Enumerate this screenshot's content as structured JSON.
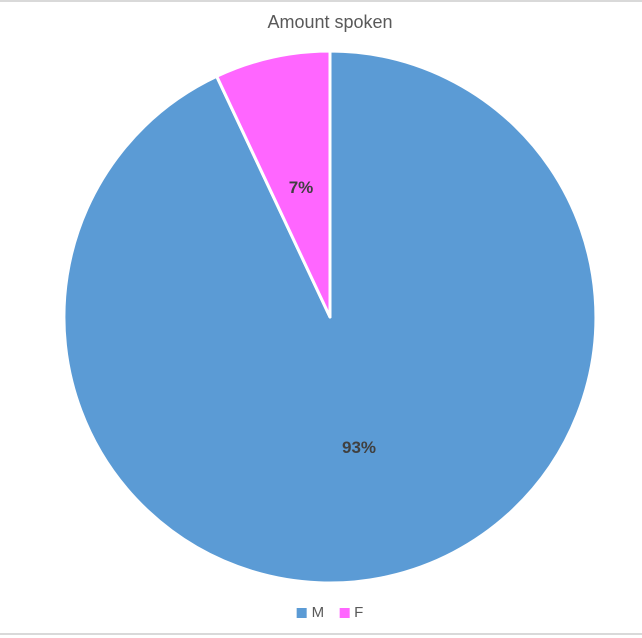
{
  "chart_data": {
    "type": "pie",
    "title": "Amount spoken",
    "categories": [
      "M",
      "F"
    ],
    "values": [
      93,
      7
    ],
    "labels": [
      "93%",
      "7%"
    ],
    "colors": [
      "#5b9bd5",
      "#ff66ff"
    ],
    "slice_border_color": "#ffffff",
    "title_color": "#595959",
    "label_color": "#404040",
    "legend_text_color": "#595959",
    "frame_border_color": "#d9d9d9",
    "legend_position": "bottom",
    "start_angle_deg": 0,
    "direction": "clockwise",
    "grid": false
  }
}
